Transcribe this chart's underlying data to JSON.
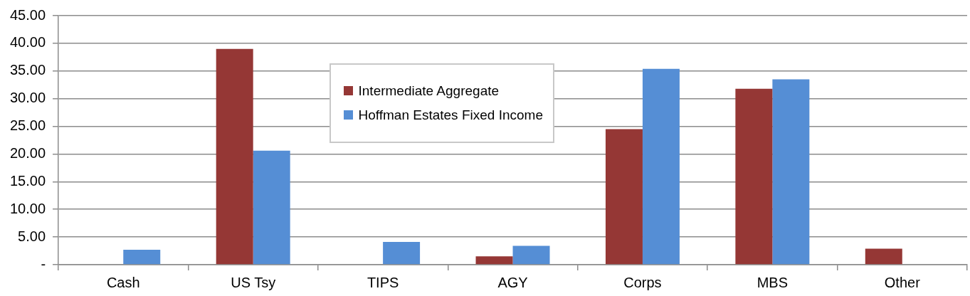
{
  "chart_data": {
    "type": "bar",
    "categories": [
      "Cash",
      "US Tsy",
      "TIPS",
      "AGY",
      "Corps",
      "MBS",
      "Other"
    ],
    "series": [
      {
        "name": "Intermediate Aggregate",
        "color": "#953735",
        "values": [
          0,
          39.0,
          0,
          1.5,
          24.5,
          31.8,
          2.9
        ]
      },
      {
        "name": "Hoffman Estates Fixed Income",
        "color": "#558ed5",
        "values": [
          2.7,
          20.6,
          4.1,
          3.4,
          35.4,
          33.5,
          0
        ]
      }
    ],
    "ylim": [
      0,
      45
    ],
    "yticks": [
      {
        "value": 0,
        "label": "-"
      },
      {
        "value": 5,
        "label": "5.00"
      },
      {
        "value": 10,
        "label": "10.00"
      },
      {
        "value": 15,
        "label": "15.00"
      },
      {
        "value": 20,
        "label": "20.00"
      },
      {
        "value": 25,
        "label": "25.00"
      },
      {
        "value": 30,
        "label": "30.00"
      },
      {
        "value": 35,
        "label": "35.00"
      },
      {
        "value": 40,
        "label": "40.00"
      },
      {
        "value": 45,
        "label": "45.00"
      }
    ],
    "grid": "y",
    "legend": "top"
  }
}
